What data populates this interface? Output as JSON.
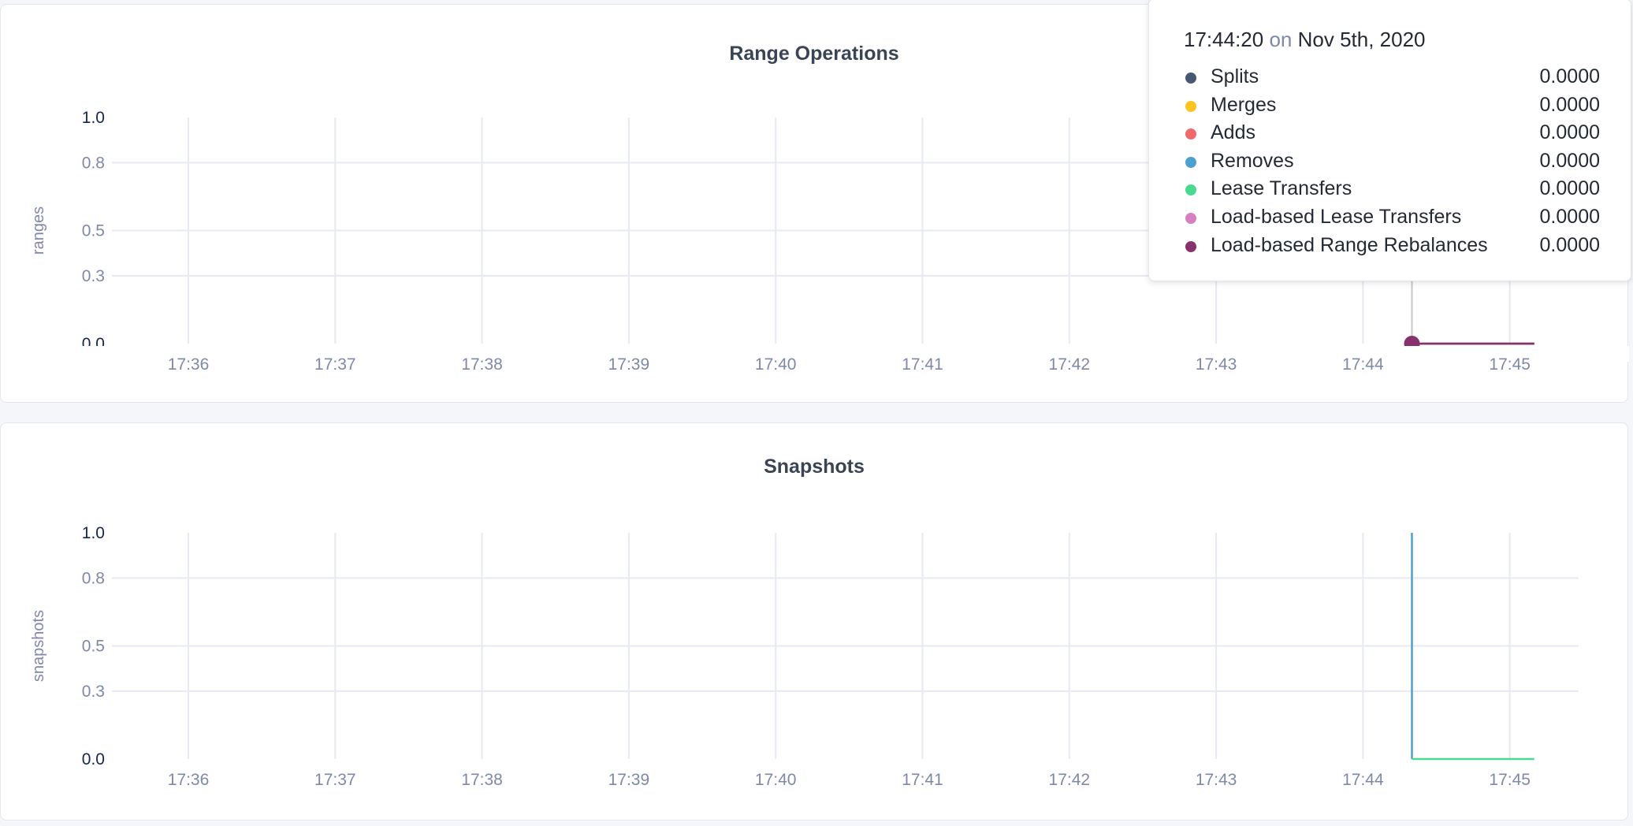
{
  "chart_data": [
    {
      "type": "line",
      "title": "Range Operations",
      "ylabel": "ranges",
      "xlabel": "",
      "ylim": [
        0,
        1.0
      ],
      "y_ticks": [
        "0.0",
        "0.3",
        "0.5",
        "0.8",
        "1.0"
      ],
      "x_ticks": [
        "17:36",
        "17:37",
        "17:38",
        "17:39",
        "17:40",
        "17:41",
        "17:42",
        "17:43",
        "17:44",
        "17:45"
      ],
      "grid": true,
      "series": [
        {
          "name": "Splits",
          "color": "#475872",
          "points": [
            [
              "17:44:20",
              0
            ],
            [
              "17:45:10",
              0
            ]
          ]
        },
        {
          "name": "Merges",
          "color": "#fdc420",
          "points": [
            [
              "17:44:20",
              0
            ],
            [
              "17:45:10",
              0
            ]
          ]
        },
        {
          "name": "Adds",
          "color": "#f16969",
          "points": [
            [
              "17:44:20",
              0
            ],
            [
              "17:45:10",
              0
            ]
          ]
        },
        {
          "name": "Removes",
          "color": "#4e9fd1",
          "points": [
            [
              "17:44:20",
              0
            ],
            [
              "17:45:10",
              0
            ]
          ]
        },
        {
          "name": "Lease Transfers",
          "color": "#49d990",
          "points": [
            [
              "17:44:20",
              0
            ],
            [
              "17:45:10",
              0
            ]
          ]
        },
        {
          "name": "Load-based Lease Transfers",
          "color": "#d77fbf",
          "points": [
            [
              "17:44:20",
              0
            ],
            [
              "17:45:10",
              0
            ]
          ]
        },
        {
          "name": "Load-based Range Rebalances",
          "color": "#87326d",
          "points": [
            [
              "17:44:20",
              0
            ],
            [
              "17:45:10",
              0
            ]
          ]
        }
      ],
      "hover": {
        "time": "17:44:20",
        "on": "on",
        "date": "Nov 5th, 2020",
        "values": [
          "0.0000",
          "0.0000",
          "0.0000",
          "0.0000",
          "0.0000",
          "0.0000",
          "0.0000"
        ]
      }
    },
    {
      "type": "line",
      "title": "Snapshots",
      "ylabel": "snapshots",
      "xlabel": "",
      "ylim": [
        0,
        1.0
      ],
      "y_ticks": [
        "0.0",
        "0.3",
        "0.5",
        "0.8",
        "1.0"
      ],
      "x_ticks": [
        "17:36",
        "17:37",
        "17:38",
        "17:39",
        "17:40",
        "17:41",
        "17:42",
        "17:43",
        "17:44",
        "17:45"
      ],
      "grid": true,
      "series": [
        {
          "color": "#4e9fd1",
          "points": [
            [
              "17:44:20",
              1.0
            ],
            [
              "17:44:20",
              0
            ]
          ]
        },
        {
          "color": "#49d990",
          "points": [
            [
              "17:44:20",
              0
            ],
            [
              "17:45:10",
              0
            ]
          ]
        }
      ]
    }
  ]
}
